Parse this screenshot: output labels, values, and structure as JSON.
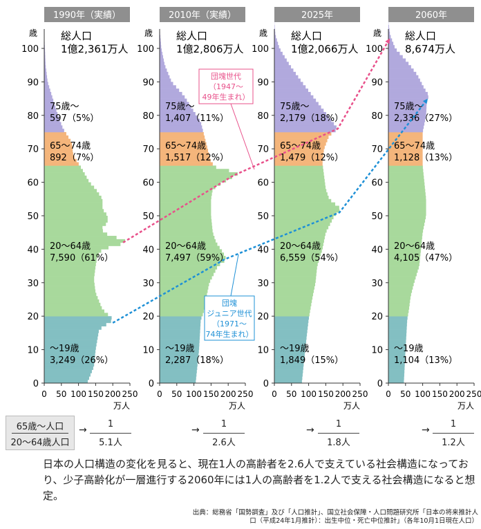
{
  "chart_data": {
    "type": "population-pyramid",
    "y_label": "歳",
    "x_label": "万人",
    "x_ticks": [
      0,
      50,
      100,
      150,
      200,
      250
    ],
    "y_ticks": [
      0,
      10,
      20,
      30,
      40,
      50,
      60,
      70,
      80,
      90,
      100
    ],
    "colors": {
      "u19": "#83bfc2",
      "w20_64": "#a8d99c",
      "r65_74": "#f4b57b",
      "r75": "#b1a9dd",
      "dankai": "#e8508a",
      "junior": "#1e90d6"
    },
    "panels": [
      {
        "title": "1990年（実績）",
        "total_label": "総人口",
        "total": "1億2,361万人",
        "groups": [
          {
            "label": "75歳〜",
            "value": "597（5%）"
          },
          {
            "label": "65〜74歳",
            "value": "892（7%）"
          },
          {
            "label": "20〜64歳",
            "value": "7,590（61%）"
          },
          {
            "label": "〜19歳",
            "value": "3,249（26%）"
          }
        ],
        "profile": [
          [
            0,
            125
          ],
          [
            5,
            145
          ],
          [
            10,
            150
          ],
          [
            16,
            160
          ],
          [
            19,
            202
          ],
          [
            22,
            170
          ],
          [
            27,
            150
          ],
          [
            31,
            145
          ],
          [
            35,
            150
          ],
          [
            38,
            155
          ],
          [
            40,
            170
          ],
          [
            41,
            205
          ],
          [
            42,
            240
          ],
          [
            43,
            232
          ],
          [
            44,
            190
          ],
          [
            46,
            165
          ],
          [
            48,
            185
          ],
          [
            50,
            185
          ],
          [
            52,
            170
          ],
          [
            55,
            170
          ],
          [
            58,
            150
          ],
          [
            60,
            132
          ],
          [
            64,
            110
          ],
          [
            68,
            85
          ],
          [
            72,
            80
          ],
          [
            76,
            55
          ],
          [
            80,
            40
          ],
          [
            85,
            25
          ],
          [
            90,
            10
          ],
          [
            95,
            4
          ],
          [
            100,
            2
          ],
          [
            104,
            0
          ]
        ]
      },
      {
        "title": "2010年（実績）",
        "total_label": "総人口",
        "total": "1億2,806万人",
        "groups": [
          {
            "label": "75歳〜",
            "value": "1,407（11%）"
          },
          {
            "label": "65〜74歳",
            "value": "1,517（12%）"
          },
          {
            "label": "20〜64歳",
            "value": "7,497（59%）"
          },
          {
            "label": "〜19歳",
            "value": "2,287（18%）"
          }
        ],
        "profile": [
          [
            0,
            105
          ],
          [
            10,
            115
          ],
          [
            19,
            120
          ],
          [
            21,
            128
          ],
          [
            25,
            135
          ],
          [
            30,
            145
          ],
          [
            35,
            170
          ],
          [
            37,
            195
          ],
          [
            39,
            185
          ],
          [
            42,
            165
          ],
          [
            45,
            155
          ],
          [
            50,
            150
          ],
          [
            55,
            150
          ],
          [
            58,
            155
          ],
          [
            60,
            185
          ],
          [
            62,
            220
          ],
          [
            63,
            235
          ],
          [
            64,
            170
          ],
          [
            66,
            150
          ],
          [
            70,
            140
          ],
          [
            74,
            130
          ],
          [
            78,
            120
          ],
          [
            82,
            95
          ],
          [
            86,
            70
          ],
          [
            90,
            35
          ],
          [
            95,
            15
          ],
          [
            100,
            5
          ],
          [
            106,
            0
          ]
        ]
      },
      {
        "title": "2025年",
        "total_label": "総人口",
        "total": "1億2,066万人",
        "groups": [
          {
            "label": "75歳〜",
            "value": "2,179（18%）"
          },
          {
            "label": "65〜74歳",
            "value": "1,479（12%）"
          },
          {
            "label": "20〜64歳",
            "value": "6,559（54%）"
          },
          {
            "label": "〜19歳",
            "value": "1,849（15%）"
          }
        ],
        "profile": [
          [
            0,
            80
          ],
          [
            10,
            90
          ],
          [
            19,
            100
          ],
          [
            22,
            105
          ],
          [
            26,
            112
          ],
          [
            30,
            120
          ],
          [
            35,
            125
          ],
          [
            40,
            140
          ],
          [
            45,
            150
          ],
          [
            50,
            175
          ],
          [
            52,
            195
          ],
          [
            55,
            160
          ],
          [
            58,
            150
          ],
          [
            62,
            145
          ],
          [
            66,
            140
          ],
          [
            70,
            145
          ],
          [
            74,
            160
          ],
          [
            76,
            185
          ],
          [
            78,
            170
          ],
          [
            82,
            140
          ],
          [
            86,
            110
          ],
          [
            90,
            80
          ],
          [
            95,
            45
          ],
          [
            100,
            15
          ],
          [
            104,
            3
          ],
          [
            108,
            0
          ]
        ]
      },
      {
        "title": "2060年",
        "total_label": "総人口",
        "total": "8,674万人",
        "groups": [
          {
            "label": "75歳〜",
            "value": "2,336（27%）"
          },
          {
            "label": "65〜74歳",
            "value": "1,128（13%）"
          },
          {
            "label": "20〜64歳",
            "value": "4,105（47%）"
          },
          {
            "label": "〜19歳",
            "value": "1,104（13%）"
          }
        ],
        "profile": [
          [
            0,
            45
          ],
          [
            10,
            50
          ],
          [
            19,
            55
          ],
          [
            22,
            60
          ],
          [
            26,
            65
          ],
          [
            30,
            75
          ],
          [
            35,
            90
          ],
          [
            40,
            95
          ],
          [
            45,
            100
          ],
          [
            50,
            110
          ],
          [
            55,
            110
          ],
          [
            60,
            105
          ],
          [
            65,
            100
          ],
          [
            70,
            100
          ],
          [
            75,
            100
          ],
          [
            80,
            110
          ],
          [
            84,
            112
          ],
          [
            86,
            118
          ],
          [
            88,
            105
          ],
          [
            92,
            85
          ],
          [
            96,
            55
          ],
          [
            100,
            20
          ],
          [
            104,
            5
          ],
          [
            108,
            0
          ]
        ]
      }
    ],
    "annotations": {
      "dankai": "団塊世代\n（1947〜\n49年生まれ）",
      "junior": "団塊\nジュニア世代\n（1971〜\n74年生まれ）"
    }
  },
  "ratio": {
    "numerator": "65歳〜人口",
    "denominator": "20〜64歳人口",
    "values": [
      {
        "a": "1",
        "b": "5.1人"
      },
      {
        "a": "1",
        "b": "2.6人"
      },
      {
        "a": "1",
        "b": "1.8人"
      },
      {
        "a": "1",
        "b": "1.2人"
      }
    ]
  },
  "summary": "日本の人口構造の変化を見ると、現在1人の高齢者を2.6人で支えている社会構造になっており、少子高齢化が一層進行する2060年には1人の高齢者を1.2人で支える社会構造になると想定。",
  "source": "出典：総務省「国勢調査」及び「人口推計」、国立社会保障・人口問題研究所「日本の将来推計人口（平成24年1月推計）：出生中位・死亡中位推計」（各年10月1日現在人口）"
}
